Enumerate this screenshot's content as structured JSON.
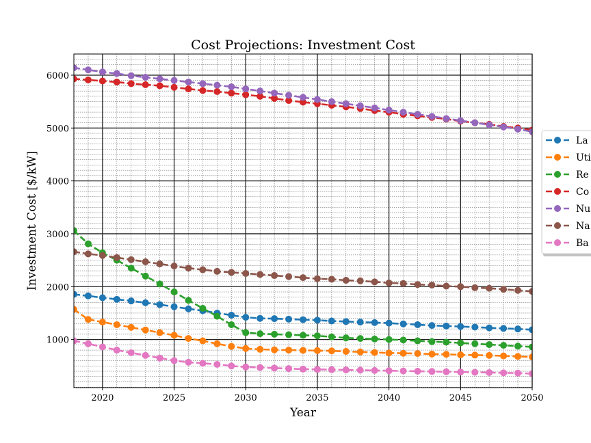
{
  "chart_data": {
    "type": "line",
    "title": "Cost Projections: Investment Cost",
    "xlabel": "Year",
    "ylabel": "Investment Cost [$/kW]",
    "xlim": [
      2018,
      2050
    ],
    "ylim": [
      90,
      6400
    ],
    "xticks": [
      2020,
      2025,
      2030,
      2035,
      2040,
      2045,
      2050
    ],
    "yticks": [
      1000,
      2000,
      3000,
      4000,
      5000,
      6000
    ],
    "grid": true,
    "legend": "right, outside plot (labels cut off at image edge)",
    "x": [
      2018,
      2019,
      2020,
      2021,
      2022,
      2023,
      2024,
      2025,
      2026,
      2027,
      2028,
      2029,
      2030,
      2031,
      2032,
      2033,
      2034,
      2035,
      2036,
      2037,
      2038,
      2039,
      2040,
      2041,
      2042,
      2043,
      2044,
      2045,
      2046,
      2047,
      2048,
      2049,
      2050
    ],
    "series": [
      {
        "name": "La",
        "color": "#1f77b4",
        "values": [
          1855,
          1825,
          1790,
          1760,
          1730,
          1695,
          1660,
          1620,
          1580,
          1545,
          1500,
          1460,
          1420,
          1400,
          1395,
          1385,
          1375,
          1365,
          1350,
          1340,
          1330,
          1320,
          1310,
          1295,
          1280,
          1265,
          1255,
          1245,
          1235,
          1220,
          1210,
          1200,
          1185
        ]
      },
      {
        "name": "Uti",
        "color": "#ff7f0e",
        "values": [
          1570,
          1380,
          1330,
          1280,
          1230,
          1180,
          1130,
          1080,
          1020,
          975,
          920,
          870,
          830,
          815,
          805,
          800,
          795,
          790,
          785,
          775,
          765,
          755,
          745,
          740,
          735,
          725,
          720,
          710,
          705,
          700,
          690,
          680,
          670
        ]
      },
      {
        "name": "Re",
        "color": "#2ca02c",
        "values": [
          3060,
          2810,
          2640,
          2500,
          2350,
          2200,
          2050,
          1900,
          1740,
          1590,
          1440,
          1280,
          1130,
          1110,
          1100,
          1090,
          1080,
          1070,
          1050,
          1030,
          1020,
          1010,
          1000,
          990,
          975,
          960,
          950,
          935,
          920,
          905,
          890,
          875,
          860
        ]
      },
      {
        "name": "Co",
        "color": "#d62728",
        "values": [
          5930,
          5910,
          5890,
          5870,
          5840,
          5820,
          5800,
          5770,
          5740,
          5710,
          5690,
          5660,
          5630,
          5600,
          5560,
          5520,
          5490,
          5460,
          5430,
          5400,
          5370,
          5330,
          5300,
          5260,
          5230,
          5200,
          5170,
          5130,
          5100,
          5070,
          5030,
          5000,
          4960
        ]
      },
      {
        "name": "Nu",
        "color": "#9467bd",
        "values": [
          6140,
          6100,
          6060,
          6030,
          5990,
          5960,
          5930,
          5900,
          5870,
          5840,
          5810,
          5780,
          5740,
          5700,
          5660,
          5620,
          5580,
          5540,
          5500,
          5460,
          5420,
          5380,
          5340,
          5300,
          5260,
          5220,
          5180,
          5140,
          5100,
          5060,
          5020,
          4980,
          4930
        ]
      },
      {
        "name": "Na",
        "color": "#8c564b",
        "values": [
          2660,
          2620,
          2590,
          2550,
          2510,
          2470,
          2430,
          2390,
          2350,
          2320,
          2290,
          2270,
          2250,
          2230,
          2210,
          2190,
          2170,
          2150,
          2140,
          2120,
          2110,
          2090,
          2070,
          2060,
          2040,
          2030,
          2010,
          2000,
          1980,
          1970,
          1950,
          1930,
          1910
        ]
      },
      {
        "name": "Ba",
        "color": "#e377c2",
        "values": [
          975,
          920,
          860,
          800,
          750,
          700,
          650,
          600,
          570,
          550,
          530,
          500,
          480,
          470,
          460,
          450,
          440,
          435,
          430,
          425,
          420,
          415,
          410,
          405,
          400,
          395,
          390,
          385,
          380,
          375,
          370,
          365,
          355
        ]
      }
    ]
  }
}
